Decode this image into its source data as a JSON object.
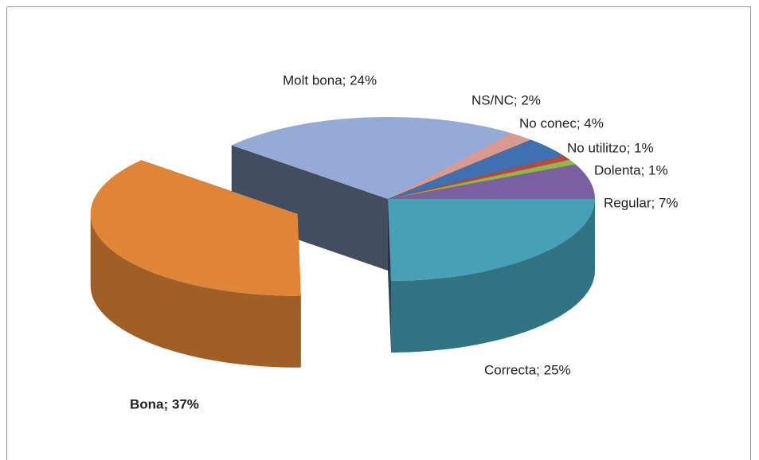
{
  "chart_data": {
    "type": "pie3d",
    "value_labels": [
      "Correcta; 25%",
      "Bona; 37%",
      "Molt bona; 24%",
      "NS/NC; 2%",
      "No conec; 4%",
      "No utilitzo; 1%",
      "Dolenta; 1%",
      "Regular; 7%"
    ],
    "values": [
      25,
      37,
      24,
      2,
      4,
      1,
      1,
      7
    ],
    "colors": [
      "#46a0b6",
      "#e08438",
      "#95aad6",
      "#d99a94",
      "#3f70b2",
      "#b34a3c",
      "#93b64b",
      "#7b5fa3"
    ]
  }
}
